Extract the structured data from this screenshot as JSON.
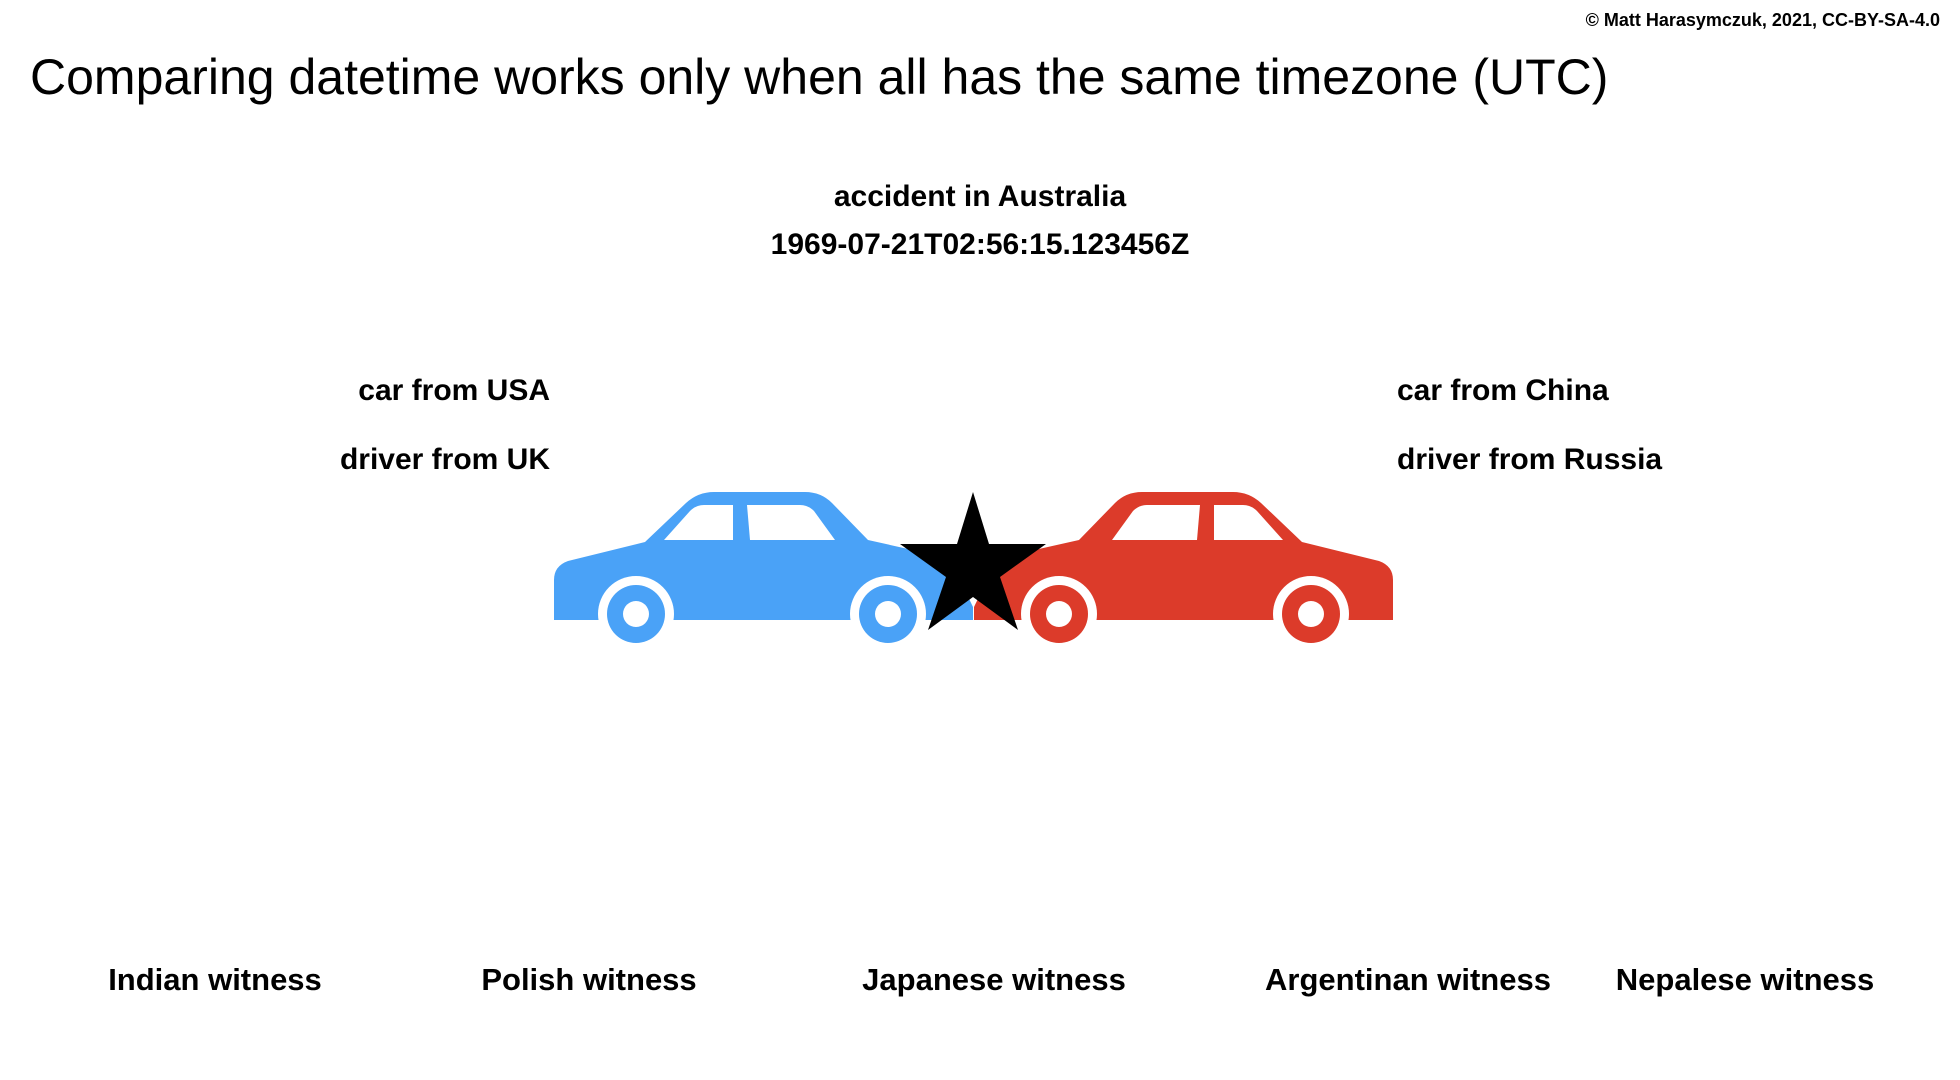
{
  "credit": "© Matt Harasymczuk, 2021, CC-BY-SA-4.0",
  "title": "Comparing datetime works only when all has the same timezone (UTC)",
  "accident": {
    "place": "accident in Australia",
    "timestamp": "1969-07-21T02:56:15.123456Z"
  },
  "left_car": {
    "origin": "car from USA",
    "driver": "driver from UK",
    "color": "#4aa2f7",
    "icon": "car-icon"
  },
  "right_car": {
    "origin": "car from China",
    "driver": "driver from Russia",
    "color": "#dc3b2a",
    "icon": "car-icon"
  },
  "impact": {
    "icon": "star-icon",
    "color": "#000000"
  },
  "witnesses": [
    "Indian witness",
    "Polish witness",
    "Japanese witness",
    "Argentinan witness",
    "Nepalese witness"
  ]
}
